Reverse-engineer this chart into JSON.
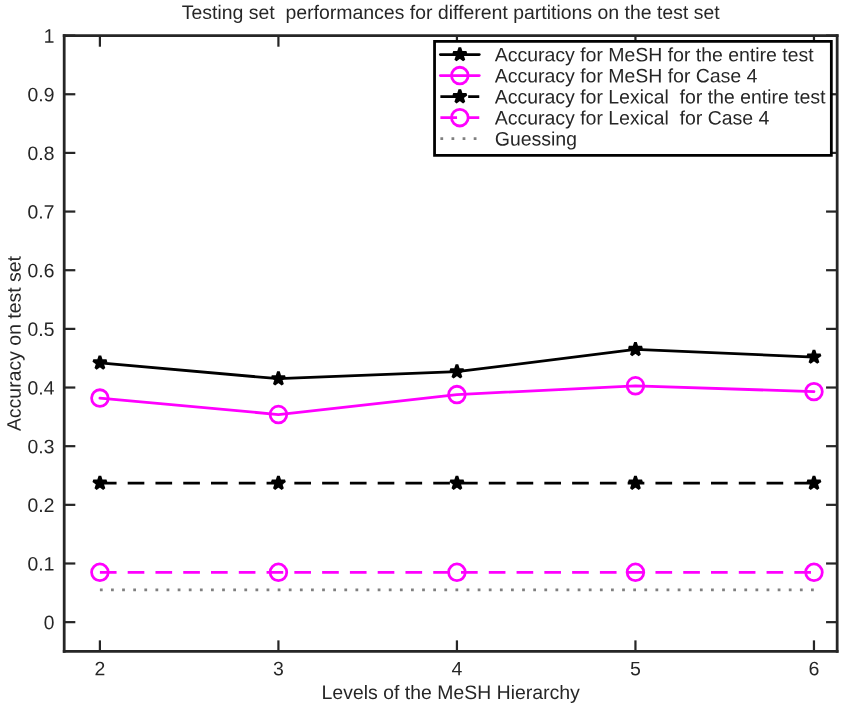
{
  "chart_data": {
    "type": "line",
    "title": "Testing set  performances for different partitions on the test set",
    "xlabel": "Levels of the MeSH Hierarchy",
    "ylabel": "Accuracy on test set",
    "x": [
      2,
      3,
      4,
      5,
      6
    ],
    "series": [
      {
        "name": "Accuracy for MeSH for the entire test",
        "color": "#000000",
        "values": [
          0.442,
          0.415,
          0.427,
          0.465,
          0.452
        ],
        "marker": "star",
        "line_style": "solid"
      },
      {
        "name": "Accuracy for MeSH for Case 4",
        "color": "#ff00ff",
        "values": [
          0.382,
          0.354,
          0.388,
          0.403,
          0.393
        ],
        "marker": "circle",
        "line_style": "solid"
      },
      {
        "name": "Accuracy for Lexical  for the entire test",
        "color": "#000000",
        "values": [
          0.237,
          0.237,
          0.237,
          0.237,
          0.237
        ],
        "marker": "star",
        "line_style": "dashed"
      },
      {
        "name": "Accuracy for Lexical  for Case 4",
        "color": "#ff00ff",
        "values": [
          0.085,
          0.085,
          0.085,
          0.085,
          0.085
        ],
        "marker": "circle",
        "line_style": "dashed"
      },
      {
        "name": "Guessing",
        "color": "#808080",
        "values": [
          0.055,
          0.055,
          0.055,
          0.055,
          0.055
        ],
        "marker": "none",
        "line_style": "dotted"
      }
    ],
    "xlim": [
      1.8,
      6.13
    ],
    "xticks": [
      2,
      3,
      4,
      5,
      6
    ],
    "ylim": [
      -0.05,
      1
    ],
    "yticks": [
      0,
      0.1,
      0.2,
      0.3,
      0.4,
      0.5,
      0.6,
      0.7,
      0.8,
      0.9,
      1
    ],
    "grid": false,
    "legend": "top right"
  }
}
